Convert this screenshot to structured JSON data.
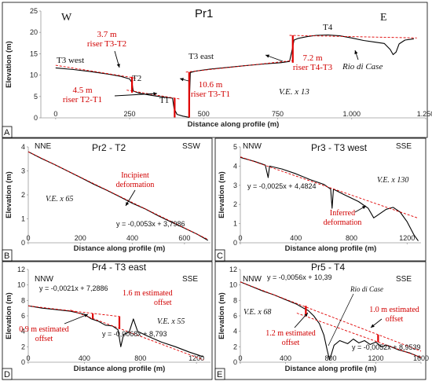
{
  "chart_data": [
    {
      "panel": "A",
      "type": "line",
      "title": "Pr1",
      "left_dir": "W",
      "right_dir": "E",
      "xlabel": "Distance along profile (m)",
      "ylabel": "Elevation (m)",
      "xlim": [
        -50,
        1250
      ],
      "ylim": [
        0,
        25
      ],
      "xticks": [
        0,
        250,
        500,
        750,
        1000,
        1250
      ],
      "xtick_labels": [
        "0",
        "250",
        "500",
        "750",
        "1.000",
        "1.250"
      ],
      "yticks": [
        0,
        5,
        10,
        15,
        20,
        25
      ],
      "ytick_labels": [
        "0",
        "5",
        "10",
        "15",
        "20",
        "25"
      ],
      "series": [
        {
          "values": [
            [
              0,
              11.7
            ],
            [
              60,
              11.3
            ],
            [
              120,
              10.8
            ],
            [
              180,
              10.2
            ],
            [
              220,
              9.7
            ],
            [
              250,
              9.1
            ],
            [
              258,
              8.2
            ],
            [
              262,
              6.3
            ],
            [
              280,
              5.8
            ],
            [
              320,
              5.3
            ],
            [
              360,
              4.9
            ],
            [
              395,
              4.6
            ],
            [
              400,
              2.2
            ],
            [
              410,
              0.8
            ],
            [
              430,
              0.4
            ],
            [
              445,
              0.2
            ],
            [
              450,
              0.1
            ],
            [
              455,
              10.6
            ],
            [
              470,
              10.9
            ],
            [
              520,
              11.4
            ],
            [
              580,
              11.8
            ],
            [
              640,
              12.2
            ],
            [
              700,
              12.6
            ],
            [
              760,
              12.9
            ],
            [
              790,
              13.2
            ],
            [
              800,
              16.3
            ],
            [
              805,
              18.2
            ],
            [
              820,
              18.6
            ],
            [
              850,
              19.0
            ],
            [
              880,
              19.3
            ],
            [
              920,
              19.4
            ],
            [
              960,
              19.2
            ],
            [
              1000,
              18.7
            ],
            [
              1040,
              18.1
            ],
            [
              1080,
              17.7
            ],
            [
              1110,
              17.4
            ],
            [
              1130,
              16.0
            ],
            [
              1140,
              14.8
            ],
            [
              1150,
              15.4
            ],
            [
              1160,
              17.3
            ],
            [
              1180,
              18.2
            ],
            [
              1210,
              18.5
            ]
          ],
          "color": "#000000"
        }
      ],
      "annotations": {
        "surfaces": [
          "T3 west",
          "T2",
          "T1",
          "T3 east",
          "T4"
        ],
        "riser_t3_t2": [
          "3.7 m",
          "riser T3-T2"
        ],
        "riser_t2_t1": [
          "4.5 m",
          "riser T2-T1"
        ],
        "riser_t3_t1": [
          "10.6 m",
          "riser T3-T1"
        ],
        "riser_t4_t3": [
          "7.2 m",
          "riser T4-T3"
        ],
        "river": "Rio di Case",
        "ve": "V.E. x 13"
      }
    },
    {
      "panel": "B",
      "type": "line",
      "title": "Pr2 - T2",
      "left_dir": "NNE",
      "right_dir": "SSW",
      "xlabel": "Distance along profile (m)",
      "ylabel": "Elevation (m)",
      "xlim": [
        0,
        700
      ],
      "ylim": [
        0,
        4
      ],
      "xticks": [
        0,
        200,
        400,
        600
      ],
      "xtick_labels": [
        "0",
        "200",
        "400",
        "600"
      ],
      "yticks": [
        0,
        1,
        2,
        3,
        4
      ],
      "ytick_labels": [
        "0",
        "1",
        "2",
        "3",
        "4"
      ],
      "series": [
        {
          "values": [
            [
              0,
              3.8
            ],
            [
              50,
              3.52
            ],
            [
              100,
              3.27
            ],
            [
              150,
              3.0
            ],
            [
              200,
              2.73
            ],
            [
              250,
              2.45
            ],
            [
              300,
              2.2
            ],
            [
              350,
              1.93
            ],
            [
              400,
              1.65
            ],
            [
              450,
              1.41
            ],
            [
              500,
              1.12
            ],
            [
              550,
              0.86
            ],
            [
              600,
              0.61
            ],
            [
              650,
              0.35
            ],
            [
              690,
              0.1
            ]
          ],
          "color": "#000000"
        },
        {
          "values": [
            [
              0,
              3.7986
            ],
            [
              690,
              0.1416
            ]
          ],
          "color": "#e00000",
          "dashed": true
        }
      ],
      "annotations": {
        "note": [
          "Incipient",
          "deformation"
        ],
        "ve": "V.E. x 65",
        "equation": "y = -0,0053x + 3,7986"
      }
    },
    {
      "panel": "C",
      "type": "line",
      "title": "Pr3 - T3 west",
      "left_dir": "NNW",
      "right_dir": "SSE",
      "xlabel": "Distance along profile (m)",
      "ylabel": "Elevation (m)",
      "xlim": [
        0,
        1300
      ],
      "ylim": [
        0,
        5
      ],
      "xticks": [
        0,
        400,
        800,
        1200
      ],
      "xtick_labels": [
        "0",
        "400",
        "800",
        "1200"
      ],
      "yticks": [
        0,
        1,
        2,
        3,
        4,
        5
      ],
      "ytick_labels": [
        "0",
        "1",
        "2",
        "3",
        "4",
        "5"
      ],
      "series": [
        {
          "values": [
            [
              0,
              4.45
            ],
            [
              100,
              4.25
            ],
            [
              180,
              4.05
            ],
            [
              200,
              3.4
            ],
            [
              210,
              4.0
            ],
            [
              300,
              3.85
            ],
            [
              400,
              3.6
            ],
            [
              500,
              3.3
            ],
            [
              600,
              3.05
            ],
            [
              650,
              2.8
            ],
            [
              660,
              1.8
            ],
            [
              670,
              2.8
            ],
            [
              750,
              2.5
            ],
            [
              850,
              2.15
            ],
            [
              920,
              1.8
            ],
            [
              960,
              1.3
            ],
            [
              1000,
              1.5
            ],
            [
              1050,
              1.75
            ],
            [
              1100,
              1.85
            ],
            [
              1150,
              1.6
            ],
            [
              1200,
              1.1
            ],
            [
              1250,
              0.4
            ],
            [
              1280,
              0.1
            ]
          ],
          "color": "#000000"
        },
        {
          "values": [
            [
              0,
              4.4824
            ],
            [
              1280,
              1.2824
            ]
          ],
          "color": "#e00000",
          "dashed": true
        }
      ],
      "annotations": {
        "note": [
          "Inferred",
          "deformation"
        ],
        "ve": "V.E. x 130",
        "equation": "y = -0,0025x + 4,4824"
      }
    },
    {
      "panel": "D",
      "type": "line",
      "title": "Pr4 - T3 east",
      "left_dir": "NNW",
      "right_dir": "SSE",
      "xlabel": "Distance along profile (m)",
      "ylabel": "Elevation (m)",
      "xlim": [
        0,
        1300
      ],
      "ylim": [
        0,
        12
      ],
      "xticks": [
        0,
        400,
        800,
        1200
      ],
      "xtick_labels": [
        "0",
        "400",
        "800",
        "1200"
      ],
      "yticks": [
        0,
        2,
        4,
        6,
        8,
        10,
        12
      ],
      "ytick_labels": [
        "0",
        "2",
        "4",
        "6",
        "8",
        "10",
        "12"
      ],
      "series": [
        {
          "values": [
            [
              0,
              7.3
            ],
            [
              100,
              7.0
            ],
            [
              200,
              6.8
            ],
            [
              300,
              6.6
            ],
            [
              400,
              6.2
            ],
            [
              450,
              5.6
            ],
            [
              500,
              5.3
            ],
            [
              550,
              4.8
            ],
            [
              600,
              4.7
            ],
            [
              640,
              4.2
            ],
            [
              660,
              2.0
            ],
            [
              680,
              3.6
            ],
            [
              720,
              3.9
            ],
            [
              750,
              5.6
            ],
            [
              780,
              4.0
            ],
            [
              850,
              3.4
            ],
            [
              950,
              2.6
            ],
            [
              1050,
              2.0
            ],
            [
              1150,
              1.3
            ],
            [
              1250,
              0.7
            ]
          ],
          "color": "#000000"
        },
        {
          "values": [
            [
              0,
              7.2886
            ],
            [
              650,
              5.9236
            ]
          ],
          "color": "#e00000",
          "dashed": true
        },
        {
          "values": [
            [
              300,
              6.753
            ],
            [
              1250,
              0.293
            ]
          ],
          "color": "#e00000",
          "dashed": true
        }
      ],
      "annotations": {
        "left_offset": [
          "0.9 m estimated",
          "offset"
        ],
        "right_offset": "1.6 m estimated",
        "right_offset_word": "offset",
        "ve": "V.E. x 55",
        "eq1": "y = -0,0021x + 7,2886",
        "eq2": "y = -0,0068x + 8,793"
      }
    },
    {
      "panel": "E",
      "type": "line",
      "title": "Pr5 - T4",
      "left_dir": "NNW",
      "right_dir": "SSE",
      "xlabel": "Distance along profile (m)",
      "ylabel": "Elevation (m)",
      "xlim": [
        0,
        1600
      ],
      "ylim": [
        0,
        12
      ],
      "xticks": [
        0,
        400,
        800,
        1200,
        1600
      ],
      "xtick_labels": [
        "0",
        "400",
        "800",
        "1200",
        "1600"
      ],
      "yticks": [
        0,
        2,
        4,
        6,
        8,
        10,
        12
      ],
      "ytick_labels": [
        "0",
        "2",
        "4",
        "6",
        "8",
        "10",
        "12"
      ],
      "series": [
        {
          "values": [
            [
              0,
              10.4
            ],
            [
              100,
              9.8
            ],
            [
              200,
              9.2
            ],
            [
              300,
              8.7
            ],
            [
              400,
              8.1
            ],
            [
              500,
              7.5
            ],
            [
              560,
              7.0
            ],
            [
              600,
              6.7
            ],
            [
              650,
              6.0
            ],
            [
              700,
              5.0
            ],
            [
              740,
              3.5
            ],
            [
              770,
              1.5
            ],
            [
              790,
              0.3
            ],
            [
              810,
              1.2
            ],
            [
              830,
              2.2
            ],
            [
              880,
              2.8
            ],
            [
              950,
              2.4
            ],
            [
              1000,
              3.0
            ],
            [
              1050,
              2.5
            ],
            [
              1100,
              2.8
            ],
            [
              1150,
              2.3
            ],
            [
              1200,
              2.6
            ],
            [
              1250,
              2.0
            ],
            [
              1300,
              2.2
            ],
            [
              1400,
              1.6
            ],
            [
              1500,
              1.2
            ],
            [
              1600,
              0.6
            ]
          ],
          "color": "#000000"
        },
        {
          "values": [
            [
              0,
              10.39
            ],
            [
              1600,
              1.43
            ]
          ],
          "color": "#e00000",
          "dashed": true
        },
        {
          "values": [
            [
              500,
              6.3539
            ],
            [
              1600,
              0.6339
            ]
          ],
          "color": "#e00000",
          "dashed": true
        }
      ],
      "annotations": {
        "river": "Rio di Case",
        "left_offset": [
          "1.2 m estimated",
          "offset"
        ],
        "right_offset": [
          "1.0 m estimated",
          "offset"
        ],
        "ve": "V.E. x 68",
        "eq1": "y = -0,0056x + 10,39",
        "eq2": "y = -0,0052x + 8,9539"
      }
    }
  ]
}
